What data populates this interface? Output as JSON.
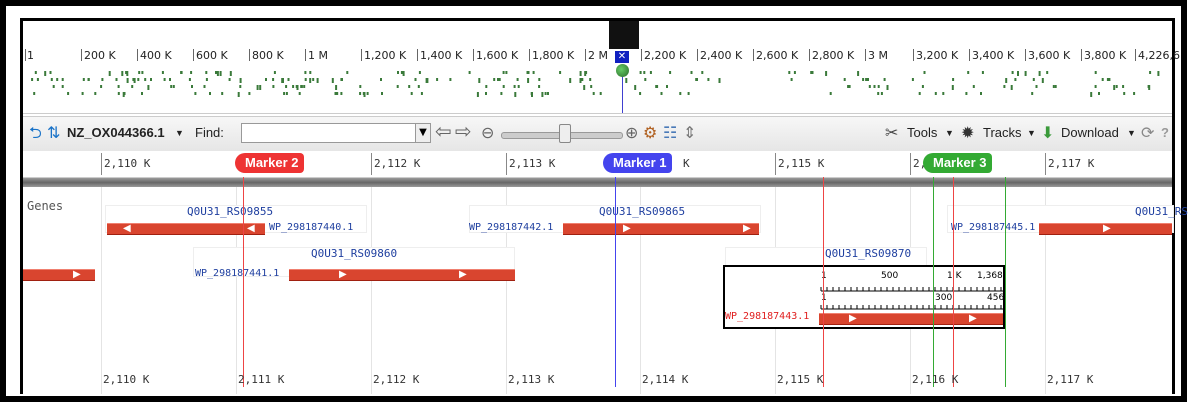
{
  "overview": {
    "labels": [
      "1",
      "200 K",
      "400 K",
      "600 K",
      "800 K",
      "1 M",
      "1,200 K",
      "1,400 K",
      "1,600 K",
      "1,800 K",
      "2 M",
      "2,200 K",
      "2,400 K",
      "2,600 K",
      "2,800 K",
      "3 M",
      "3,200 K",
      "3,400 K",
      "3,600 K",
      "3,800 K",
      "4,226,6"
    ],
    "marker_symbol": "✕"
  },
  "toolbar": {
    "sequence": "NZ_OX044366.1",
    "find_label": "Find:",
    "find_value": "",
    "tools_label": "Tools",
    "tracks_label": "Tracks",
    "download_label": "Download",
    "help_symbol": "?"
  },
  "ruler": {
    "labels": [
      "2,110 K",
      "2,112 K",
      "2,113 K",
      "K",
      "2,115 K",
      "2,",
      "2,117 K"
    ]
  },
  "markers": [
    {
      "label": "Marker 2",
      "color": "#ee3333"
    },
    {
      "label": "Marker 1",
      "color": "#4444ee"
    },
    {
      "label": "Marker 3",
      "color": "#33aa33"
    }
  ],
  "tracks": {
    "label": "Genes",
    "genes": [
      {
        "name": "Q0U31_RS09855",
        "product": "WP_298187440.1"
      },
      {
        "name": "Q0U31_RS09865",
        "product": "WP_298187442.1"
      },
      {
        "name": "Q0U31_RS",
        "product": "WP_298187445.1"
      },
      {
        "name": "Q0U31_RS09860",
        "product": "WP_298187441.1"
      },
      {
        "name": "Q0U31_RS09870",
        "product": "WP_298187443.1"
      }
    ],
    "popup": {
      "top_ticks": [
        "1",
        "500",
        "1 K",
        "1,368"
      ],
      "bottom_ticks": [
        "1",
        "300",
        "456"
      ]
    },
    "bottom_labels": [
      "2,110 K",
      "2,111 K",
      "2,112 K",
      "2,113 K",
      "2,114 K",
      "2,115 K",
      "2,116 K",
      "2,117 K"
    ]
  }
}
